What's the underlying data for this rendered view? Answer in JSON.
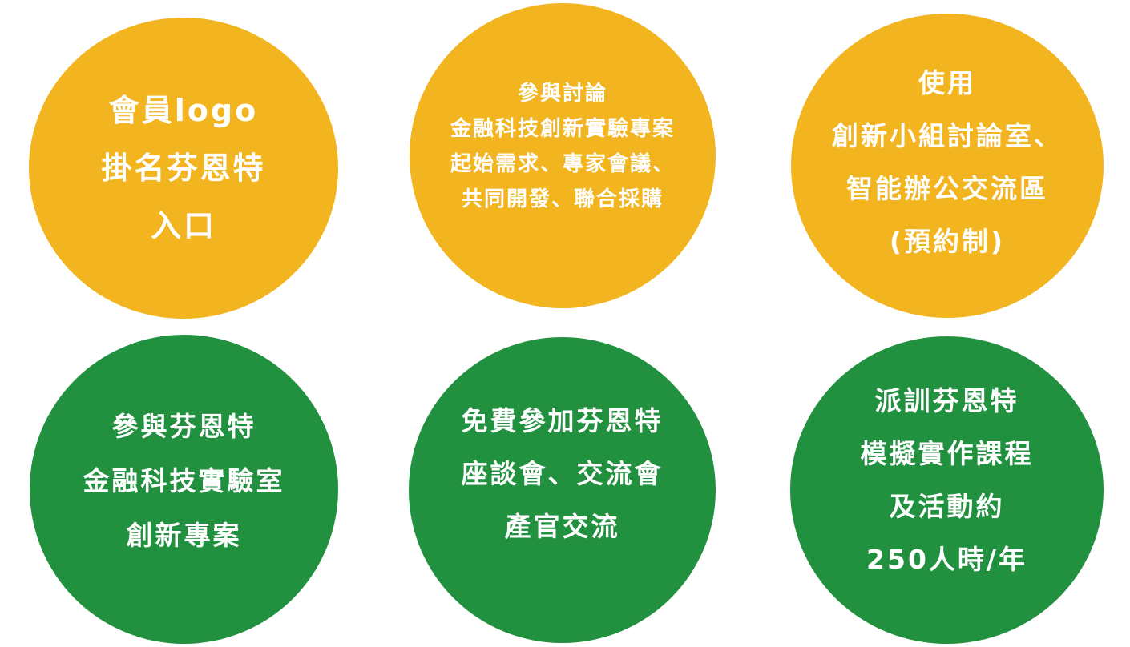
{
  "colors": {
    "yellow": "#f2b41f",
    "green": "#219140",
    "text": "#ffffff",
    "background": "#ffffff"
  },
  "circles": [
    {
      "color": "yellow",
      "lines": [
        "會員logo",
        "掛名芬恩特",
        "入口"
      ]
    },
    {
      "color": "yellow",
      "lines": [
        "參與討論",
        "金融科技創新實驗專案",
        "起始需求、專家會議、",
        "共同開發、聯合採購"
      ]
    },
    {
      "color": "yellow",
      "lines": [
        "使用",
        "創新小組討論室、",
        "智能辦公交流區",
        "(預約制)"
      ]
    },
    {
      "color": "green",
      "lines": [
        "參與芬恩特",
        "金融科技實驗室",
        "創新專案"
      ]
    },
    {
      "color": "green",
      "lines": [
        "免費參加芬恩特",
        "座談會、交流會",
        "產官交流"
      ]
    },
    {
      "color": "green",
      "lines": [
        "派訓芬恩特",
        "模擬實作課程",
        "及活動約",
        "250人時/年"
      ]
    }
  ]
}
